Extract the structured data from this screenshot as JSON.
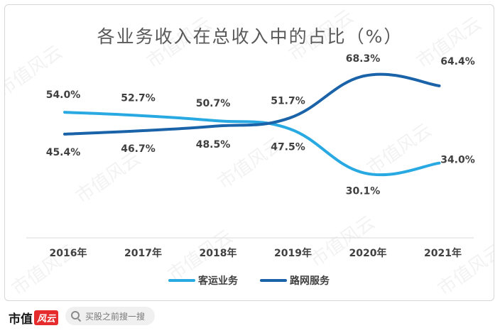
{
  "chart_data": {
    "type": "line",
    "title": "各业务收入在总收入中的占比（%）",
    "categories": [
      "2016年",
      "2017年",
      "2018年",
      "2019年",
      "2020年",
      "2021年"
    ],
    "ylim": [
      0,
      80
    ],
    "grid": false,
    "legend_position": "bottom",
    "series": [
      {
        "name": "客运业务",
        "color": "#29a9e1",
        "values": [
          54.0,
          52.7,
          50.7,
          47.5,
          30.1,
          34.0
        ],
        "labels": [
          "54.0%",
          "52.7%",
          "50.7%",
          "47.5%",
          "30.1%",
          "34.0%"
        ]
      },
      {
        "name": "路网服务",
        "color": "#1a63a8",
        "values": [
          45.4,
          46.7,
          48.5,
          51.7,
          68.3,
          64.4
        ],
        "labels": [
          "45.4%",
          "46.7%",
          "48.5%",
          "51.7%",
          "68.3%",
          "64.4%"
        ]
      }
    ]
  },
  "watermark": "市值风云",
  "footer": {
    "brand": "市值",
    "brand_badge": "风云",
    "search_placeholder": "买股之前搜一搜"
  }
}
